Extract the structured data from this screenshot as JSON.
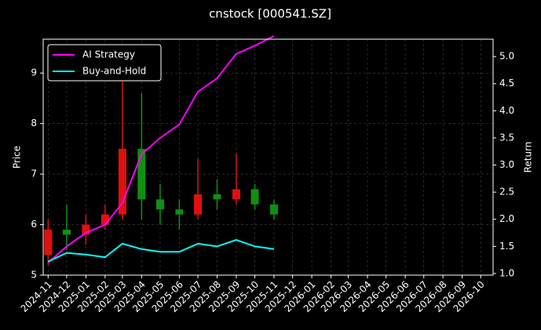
{
  "chart_data": {
    "type": "candlestick",
    "title": "cnstock [000541.SZ]",
    "y_label": "Price",
    "y2_label": "Return",
    "x": [
      "2024-11",
      "2024-12",
      "2025-01",
      "2025-02",
      "2025-03",
      "2025-04",
      "2025-05",
      "2025-06",
      "2025-07",
      "2025-08",
      "2025-09",
      "2025-10",
      "2025-11"
    ],
    "open": [
      5.4,
      5.9,
      5.8,
      6.0,
      6.2,
      7.5,
      6.5,
      6.3,
      6.2,
      6.6,
      6.5,
      6.7,
      6.4
    ],
    "high": [
      6.1,
      6.4,
      6.2,
      6.4,
      9.2,
      8.6,
      6.8,
      6.5,
      7.3,
      6.9,
      7.4,
      6.8,
      6.5
    ],
    "low": [
      5.2,
      5.5,
      5.6,
      5.9,
      6.1,
      6.1,
      6.0,
      5.9,
      6.1,
      6.3,
      6.4,
      6.3,
      6.1
    ],
    "close": [
      5.9,
      5.8,
      6.0,
      6.2,
      7.5,
      6.5,
      6.3,
      6.2,
      6.6,
      6.5,
      6.7,
      6.4,
      6.2
    ],
    "up_color": "#e01010",
    "down_color": "#109010",
    "series": [
      {
        "name": "AI Strategy",
        "color": "#ff00ff",
        "axis": "y2",
        "values": [
          1.2,
          1.5,
          1.75,
          1.9,
          2.3,
          3.2,
          3.5,
          3.75,
          4.35,
          4.6,
          5.05,
          5.2,
          5.38
        ]
      },
      {
        "name": "Buy-and-Hold",
        "color": "#00ffff",
        "axis": "y2",
        "values": [
          1.22,
          1.38,
          1.35,
          1.3,
          1.55,
          1.45,
          1.4,
          1.4,
          1.55,
          1.5,
          1.62,
          1.5,
          1.45
        ]
      }
    ],
    "xlim": [
      "2024-10-24",
      "2026-10-21"
    ],
    "xticks": [
      "2024-11",
      "2024-12",
      "2025-01",
      "2025-02",
      "2025-03",
      "2025-04",
      "2025-05",
      "2025-06",
      "2025-07",
      "2025-08",
      "2025-09",
      "2025-10",
      "2025-11",
      "2025-12",
      "2026-01",
      "2026-02",
      "2026-03",
      "2026-04",
      "2026-05",
      "2026-06",
      "2026-07",
      "2026-08",
      "2026-09",
      "2026-10"
    ],
    "ylim": [
      5,
      9.67
    ],
    "yticks": [
      5,
      6,
      7,
      8,
      9
    ],
    "y2lim": [
      0.97,
      5.32
    ],
    "y2ticks": [
      {
        "value": 1,
        "label": "1.0"
      },
      1.5,
      {
        "value": 2,
        "label": "2.0"
      },
      2.5,
      {
        "value": 3,
        "label": "3.0"
      },
      3.5,
      {
        "value": 4,
        "label": "4.0"
      },
      4.5,
      {
        "value": 5,
        "label": "5.0"
      }
    ],
    "grid": true,
    "legend": "upper left"
  }
}
